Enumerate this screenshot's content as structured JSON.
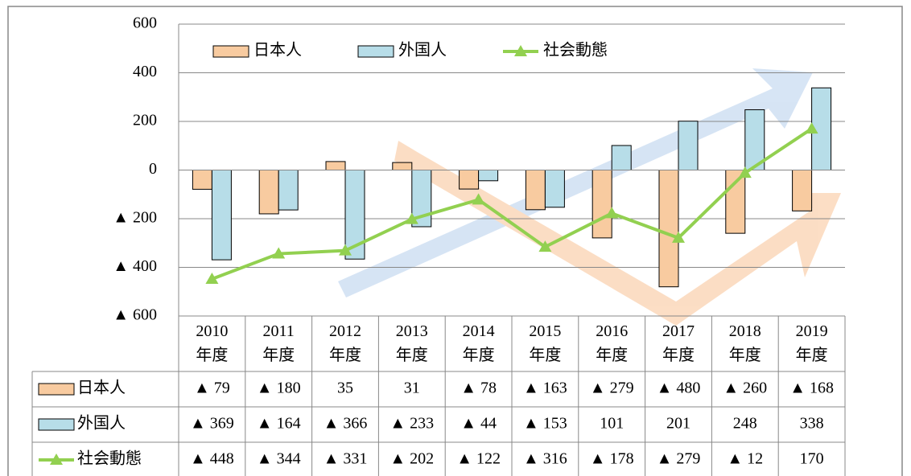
{
  "chart_data": {
    "type": "bar",
    "categories": [
      "2010\n年度",
      "2011\n年度",
      "2012\n年度",
      "2013\n年度",
      "2014\n年度",
      "2015\n年度",
      "2016\n年度",
      "2017\n年度",
      "2018\n年度",
      "2019\n年度"
    ],
    "series": [
      {
        "name": "日本人",
        "type": "bar",
        "color": "#f8cba0",
        "values": [
          -79,
          -180,
          35,
          31,
          -78,
          -163,
          -279,
          -480,
          -260,
          -168
        ],
        "value_labels": [
          "▲ 79",
          "▲ 180",
          "35",
          "31",
          "▲ 78",
          "▲ 163",
          "▲ 279",
          "▲ 480",
          "▲ 260",
          "▲ 168"
        ]
      },
      {
        "name": "外国人",
        "type": "bar",
        "color": "#b7dde8",
        "values": [
          -369,
          -164,
          -366,
          -233,
          -44,
          -153,
          101,
          201,
          248,
          338
        ],
        "value_labels": [
          "▲ 369",
          "▲ 164",
          "▲ 366",
          "▲ 233",
          "▲ 44",
          "▲ 153",
          "101",
          "201",
          "248",
          "338"
        ]
      },
      {
        "name": "社会動態",
        "type": "line",
        "color": "#92d050",
        "values": [
          -448,
          -344,
          -331,
          -202,
          -122,
          -316,
          -178,
          -279,
          -12,
          170
        ],
        "value_labels": [
          "▲ 448",
          "▲ 344",
          "▲ 331",
          "▲ 202",
          "▲ 122",
          "▲ 316",
          "▲ 178",
          "▲ 279",
          "▲ 12",
          "170"
        ]
      }
    ],
    "ylim": [
      -600,
      600
    ],
    "yticks": [
      {
        "value": -600,
        "label": "▲ 600"
      },
      {
        "value": -400,
        "label": "▲ 400"
      },
      {
        "value": -200,
        "label": "▲ 200"
      },
      0,
      200,
      400,
      600
    ],
    "grid": true,
    "legend": "top"
  }
}
